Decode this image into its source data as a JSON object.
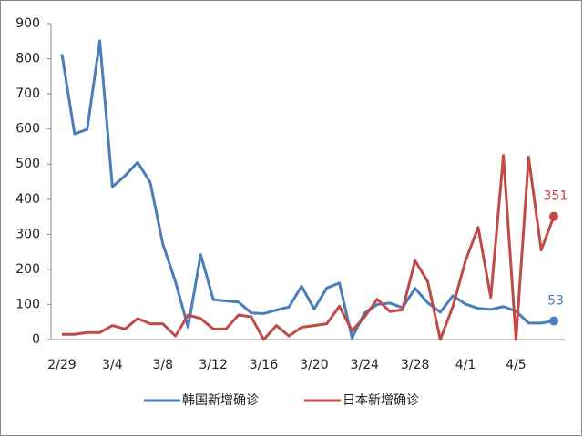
{
  "chart_data": {
    "type": "line",
    "categories": [
      "2/29",
      null,
      null,
      null,
      "3/4",
      null,
      null,
      null,
      "3/8",
      null,
      null,
      null,
      "3/12",
      null,
      null,
      null,
      "3/16",
      null,
      null,
      null,
      "3/20",
      null,
      null,
      null,
      "3/24",
      null,
      null,
      null,
      "3/28",
      null,
      null,
      null,
      "4/1",
      null,
      null,
      null,
      "4/5",
      null,
      null,
      null
    ],
    "series": [
      {
        "name": "韩国新增确诊",
        "color": "#4a7ebb",
        "values": [
          813,
          586,
          599,
          851,
          435,
          467,
          505,
          448,
          272,
          165,
          35,
          242,
          114,
          110,
          107,
          76,
          74,
          84,
          93,
          152,
          87,
          147,
          161,
          5,
          76,
          100,
          104,
          91,
          146,
          105,
          78,
          125,
          101,
          89,
          86,
          94,
          81,
          47,
          47,
          53
        ]
      },
      {
        "name": "日本新增确诊",
        "color": "#be4b48",
        "values": [
          15,
          15,
          20,
          20,
          40,
          30,
          60,
          45,
          45,
          10,
          70,
          60,
          30,
          30,
          70,
          65,
          0,
          40,
          10,
          35,
          40,
          45,
          95,
          25,
          65,
          115,
          80,
          85,
          225,
          165,
          0,
          95,
          225,
          320,
          120,
          525,
          0,
          520,
          255,
          351
        ]
      }
    ],
    "ylim": [
      0,
      900
    ],
    "yticks": [
      0,
      100,
      200,
      300,
      400,
      500,
      600,
      700,
      800,
      900
    ],
    "legend": "bottom"
  }
}
